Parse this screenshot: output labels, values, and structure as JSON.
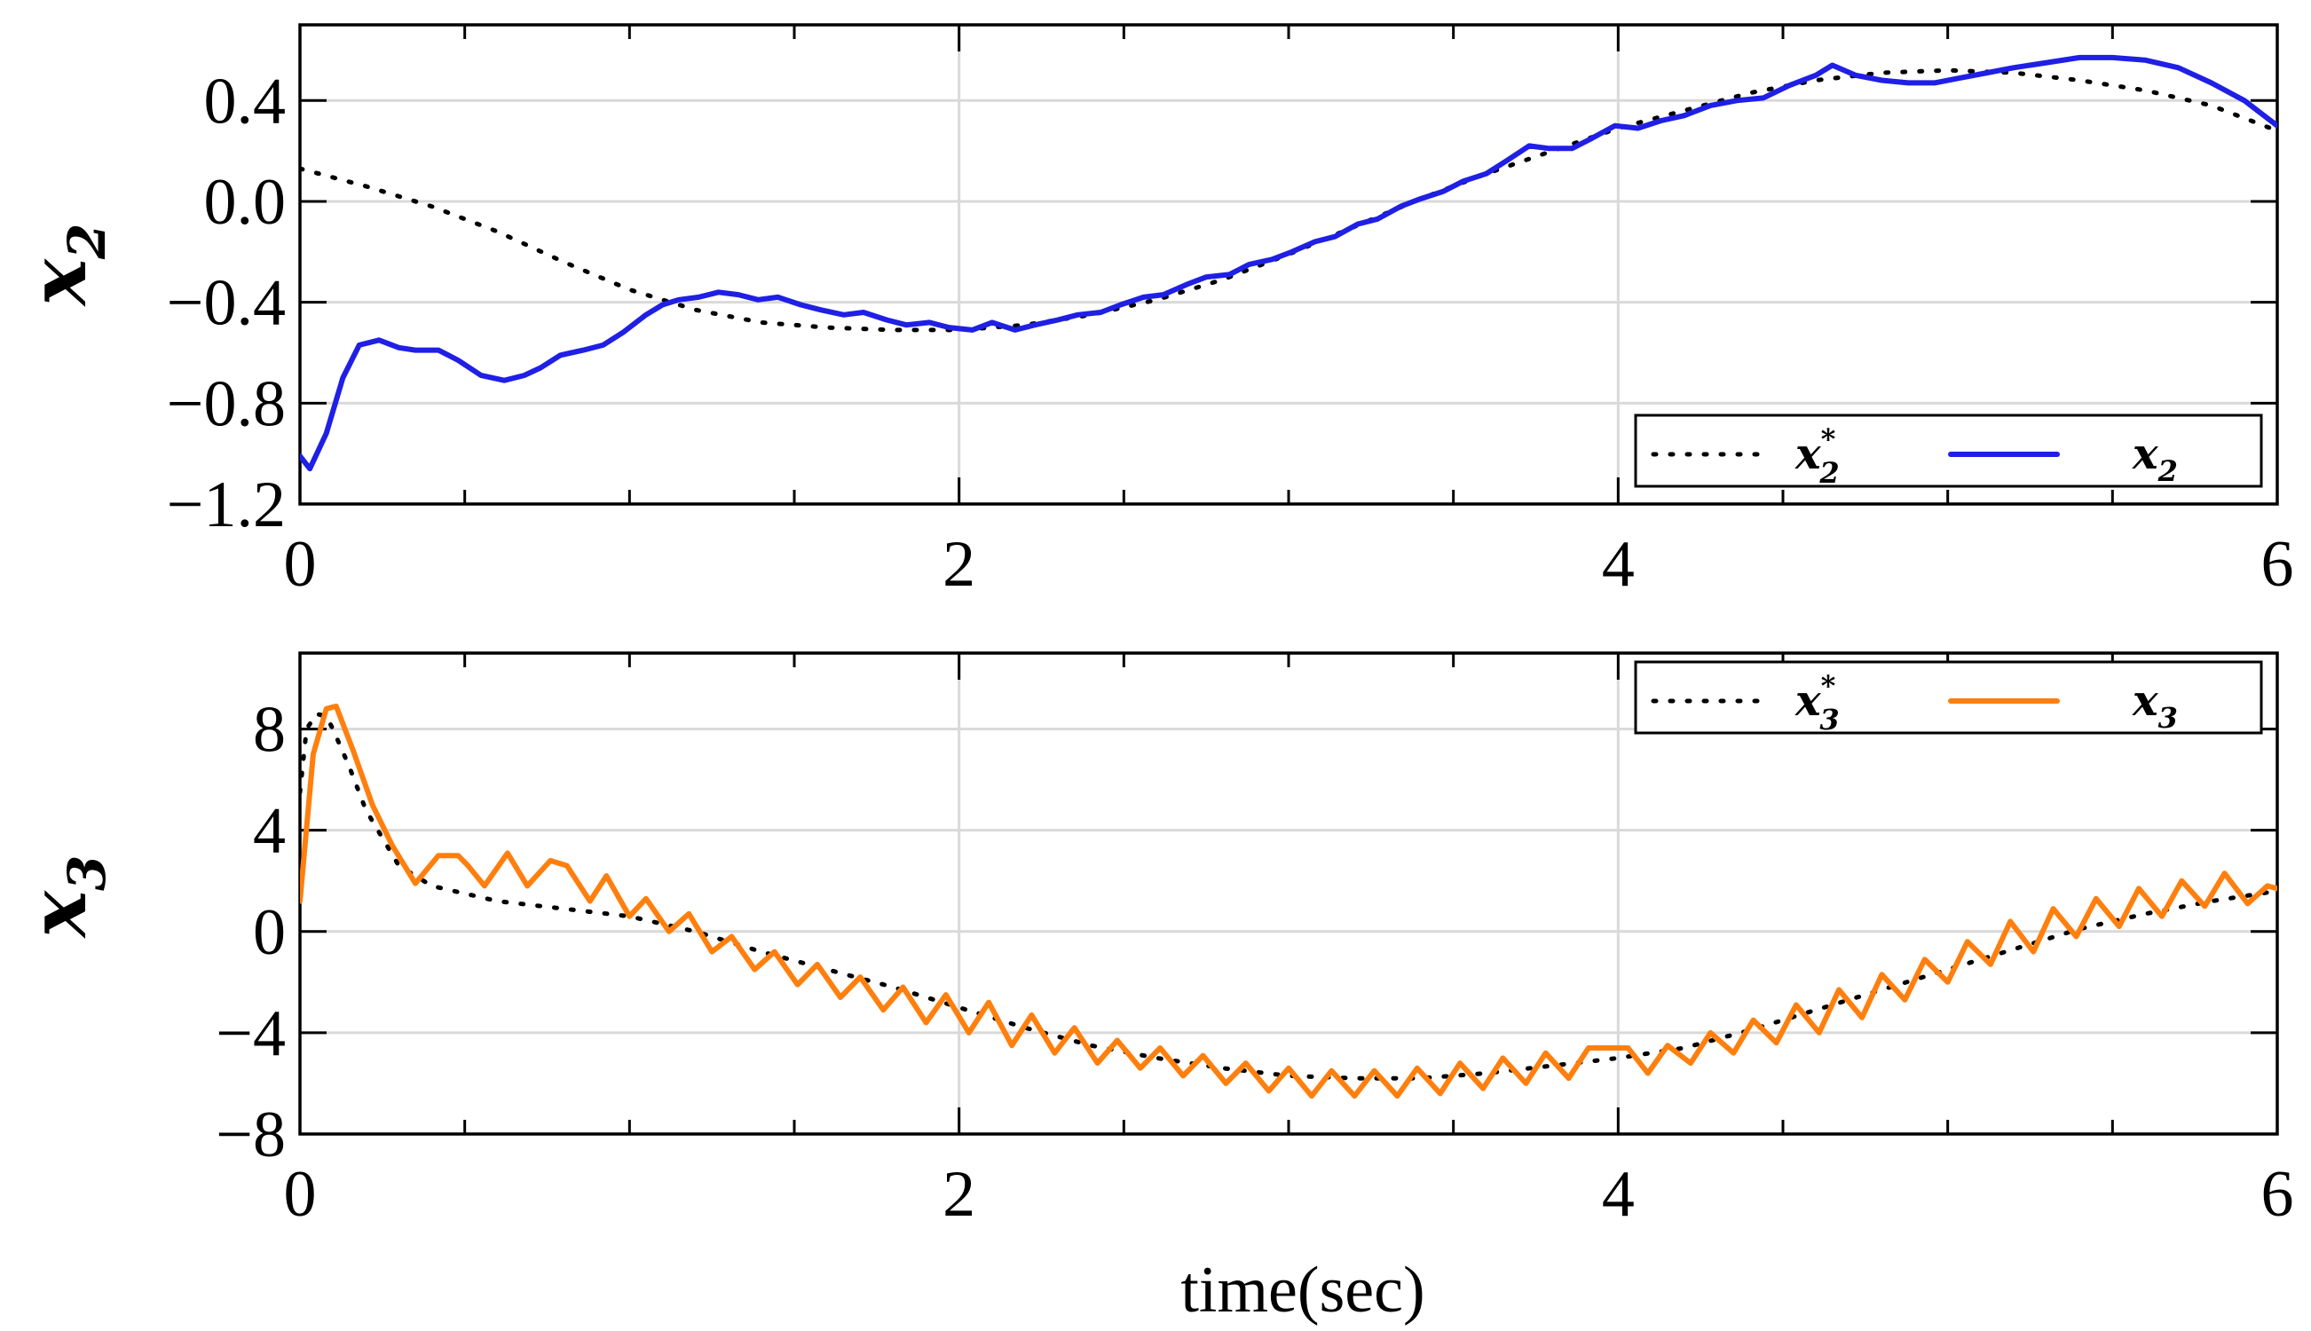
{
  "chart_data": [
    {
      "type": "line",
      "ylabel": "x",
      "ylabel_sub": "2",
      "xlabel": "",
      "xlim": [
        0,
        6
      ],
      "ylim": [
        -1.2,
        0.7
      ],
      "xticks": [
        "0",
        "2",
        "4",
        "6"
      ],
      "yticks": [
        {
          "value": 0.4,
          "label": "0.4"
        },
        {
          "value": 0.0,
          "label": "0.0"
        },
        {
          "value": -0.4,
          "label": "−0.4"
        },
        {
          "value": -0.8,
          "label": "−0.8"
        },
        {
          "value": -1.2,
          "label": "−1.2"
        }
      ],
      "grid": true,
      "legend_position": "bottom-right",
      "series": [
        {
          "name": "x",
          "name_sub": "2",
          "name_sup": "*",
          "style": "dotted",
          "color": "#000000",
          "x": [
            0,
            0.2,
            0.4,
            0.6,
            0.8,
            1.0,
            1.2,
            1.4,
            1.6,
            1.8,
            2.0,
            2.2,
            2.4,
            2.6,
            2.8,
            3.0,
            3.2,
            3.4,
            3.6,
            3.8,
            4.0,
            4.2,
            4.4,
            4.6,
            4.8,
            5.0,
            5.2,
            5.4,
            5.6,
            5.8,
            6.0
          ],
          "y": [
            0.13,
            0.06,
            -0.02,
            -0.12,
            -0.24,
            -0.35,
            -0.43,
            -0.48,
            -0.5,
            -0.51,
            -0.51,
            -0.49,
            -0.45,
            -0.39,
            -0.31,
            -0.21,
            -0.1,
            0.01,
            0.11,
            0.2,
            0.29,
            0.36,
            0.43,
            0.48,
            0.51,
            0.52,
            0.51,
            0.48,
            0.44,
            0.38,
            0.28
          ]
        },
        {
          "name": "x",
          "name_sub": "2",
          "style": "solid",
          "color": "#1f1fe6",
          "x": [
            0,
            0.03,
            0.08,
            0.13,
            0.18,
            0.24,
            0.3,
            0.35,
            0.42,
            0.48,
            0.55,
            0.62,
            0.68,
            0.73,
            0.79,
            0.86,
            0.92,
            0.98,
            1.05,
            1.1,
            1.15,
            1.21,
            1.27,
            1.33,
            1.39,
            1.45,
            1.52,
            1.58,
            1.65,
            1.71,
            1.78,
            1.84,
            1.91,
            1.97,
            2.04,
            2.1,
            2.17,
            2.23,
            2.3,
            2.36,
            2.43,
            2.49,
            2.56,
            2.62,
            2.69,
            2.75,
            2.82,
            2.88,
            2.95,
            3.01,
            3.08,
            3.14,
            3.21,
            3.27,
            3.34,
            3.4,
            3.47,
            3.53,
            3.6,
            3.66,
            3.73,
            3.79,
            3.86,
            3.92,
            3.99,
            4.06,
            4.13,
            4.2,
            4.28,
            4.36,
            4.44,
            4.52,
            4.6,
            4.65,
            4.72,
            4.8,
            4.88,
            4.96,
            5.04,
            5.12,
            5.2,
            5.3,
            5.4,
            5.5,
            5.6,
            5.7,
            5.8,
            5.9,
            6.0
          ],
          "y": [
            -1.01,
            -1.06,
            -0.92,
            -0.7,
            -0.57,
            -0.55,
            -0.58,
            -0.59,
            -0.59,
            -0.63,
            -0.69,
            -0.71,
            -0.69,
            -0.66,
            -0.61,
            -0.59,
            -0.57,
            -0.52,
            -0.45,
            -0.41,
            -0.39,
            -0.38,
            -0.36,
            -0.37,
            -0.39,
            -0.38,
            -0.41,
            -0.43,
            -0.45,
            -0.44,
            -0.47,
            -0.49,
            -0.48,
            -0.5,
            -0.51,
            -0.48,
            -0.51,
            -0.49,
            -0.47,
            -0.45,
            -0.44,
            -0.41,
            -0.38,
            -0.37,
            -0.33,
            -0.3,
            -0.29,
            -0.25,
            -0.23,
            -0.2,
            -0.16,
            -0.14,
            -0.09,
            -0.07,
            -0.02,
            0.01,
            0.04,
            0.08,
            0.11,
            0.16,
            0.22,
            0.21,
            0.21,
            0.25,
            0.3,
            0.29,
            0.32,
            0.34,
            0.38,
            0.4,
            0.41,
            0.46,
            0.5,
            0.54,
            0.5,
            0.48,
            0.47,
            0.47,
            0.49,
            0.51,
            0.53,
            0.55,
            0.57,
            0.57,
            0.56,
            0.53,
            0.47,
            0.4,
            0.3
          ]
        }
      ]
    },
    {
      "type": "line",
      "ylabel": "x",
      "ylabel_sub": "3",
      "xlabel": "time(sec)",
      "xlim": [
        0,
        6
      ],
      "ylim": [
        -8,
        11
      ],
      "xticks": [
        "0",
        "2",
        "4",
        "6"
      ],
      "yticks": [
        {
          "value": 8,
          "label": "8"
        },
        {
          "value": 4,
          "label": "4"
        },
        {
          "value": 0,
          "label": "0"
        },
        {
          "value": -4,
          "label": "−4"
        },
        {
          "value": -8,
          "label": "−8"
        }
      ],
      "grid": true,
      "legend_position": "top-right",
      "series": [
        {
          "name": "x",
          "name_sub": "3",
          "name_sup": "*",
          "style": "dotted",
          "color": "#000000",
          "x": [
            0,
            0.02,
            0.05,
            0.08,
            0.1,
            0.15,
            0.2,
            0.3,
            0.4,
            0.6,
            0.8,
            1.0,
            1.2,
            1.4,
            1.6,
            1.8,
            2.0,
            2.2,
            2.4,
            2.6,
            2.8,
            3.0,
            3.2,
            3.4,
            3.6,
            3.8,
            4.0,
            4.2,
            4.4,
            4.6,
            4.8,
            5.0,
            5.2,
            5.4,
            5.6,
            5.8,
            6.0
          ],
          "y": [
            5.5,
            8.0,
            8.6,
            8.5,
            8.0,
            6.5,
            4.8,
            2.6,
            1.8,
            1.2,
            0.9,
            0.6,
            0.0,
            -0.8,
            -1.5,
            -2.2,
            -3.0,
            -3.8,
            -4.5,
            -5.0,
            -5.4,
            -5.7,
            -5.8,
            -5.8,
            -5.6,
            -5.3,
            -5.0,
            -4.6,
            -3.9,
            -3.1,
            -2.3,
            -1.5,
            -0.7,
            0.1,
            0.7,
            1.2,
            1.6
          ]
        },
        {
          "name": "x",
          "name_sub": "3",
          "style": "solid",
          "color": "#ff7f0e",
          "x": [
            0,
            0.04,
            0.08,
            0.11,
            0.16,
            0.22,
            0.28,
            0.35,
            0.42,
            0.48,
            0.51,
            0.56,
            0.63,
            0.69,
            0.76,
            0.81,
            0.88,
            0.93,
            1.0,
            1.05,
            1.12,
            1.18,
            1.25,
            1.31,
            1.38,
            1.44,
            1.51,
            1.57,
            1.64,
            1.7,
            1.77,
            1.83,
            1.9,
            1.96,
            2.03,
            2.09,
            2.16,
            2.22,
            2.29,
            2.35,
            2.42,
            2.48,
            2.55,
            2.61,
            2.68,
            2.74,
            2.81,
            2.87,
            2.94,
            3.0,
            3.07,
            3.13,
            3.2,
            3.26,
            3.33,
            3.39,
            3.46,
            3.52,
            3.59,
            3.65,
            3.72,
            3.78,
            3.85,
            3.91,
            3.97,
            4.03,
            4.09,
            4.15,
            4.22,
            4.28,
            4.35,
            4.41,
            4.48,
            4.54,
            4.61,
            4.67,
            4.74,
            4.8,
            4.87,
            4.93,
            5.0,
            5.06,
            5.13,
            5.19,
            5.26,
            5.32,
            5.39,
            5.45,
            5.52,
            5.58,
            5.65,
            5.71,
            5.78,
            5.84,
            5.91,
            5.97,
            6.0
          ],
          "y": [
            1.2,
            7.0,
            8.8,
            8.9,
            7.2,
            5.0,
            3.4,
            1.9,
            3.0,
            3.0,
            2.6,
            1.8,
            3.1,
            1.8,
            2.8,
            2.6,
            1.2,
            2.2,
            0.6,
            1.3,
            0.0,
            0.7,
            -0.8,
            -0.2,
            -1.5,
            -0.8,
            -2.1,
            -1.3,
            -2.6,
            -1.8,
            -3.1,
            -2.2,
            -3.6,
            -2.5,
            -4.0,
            -2.8,
            -4.5,
            -3.3,
            -4.8,
            -3.8,
            -5.2,
            -4.3,
            -5.4,
            -4.6,
            -5.7,
            -4.9,
            -6.0,
            -5.2,
            -6.3,
            -5.4,
            -6.5,
            -5.5,
            -6.5,
            -5.5,
            -6.5,
            -5.4,
            -6.4,
            -5.2,
            -6.2,
            -5.0,
            -6.0,
            -4.8,
            -5.8,
            -4.6,
            -4.6,
            -4.6,
            -5.6,
            -4.5,
            -5.2,
            -4.0,
            -4.8,
            -3.5,
            -4.4,
            -2.9,
            -4.0,
            -2.3,
            -3.4,
            -1.7,
            -2.7,
            -1.1,
            -2.0,
            -0.4,
            -1.3,
            0.4,
            -0.8,
            0.9,
            -0.2,
            1.3,
            0.2,
            1.7,
            0.6,
            2.0,
            1.0,
            2.3,
            1.1,
            1.8,
            1.7
          ]
        }
      ]
    }
  ]
}
